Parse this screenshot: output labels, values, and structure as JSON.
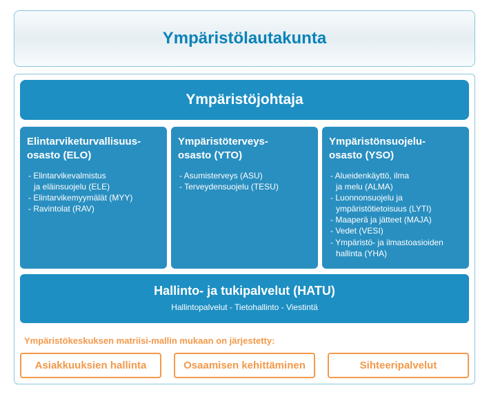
{
  "colors": {
    "blueText": "#0a82b8",
    "blueMid": "#1d8fc3",
    "blueFill": "#298fc0",
    "blueBorder": "#8bc6de",
    "orange": "#f2994a",
    "orangeBorder": "#f2994a"
  },
  "top": {
    "title": "Ympäristölautakunta"
  },
  "director": {
    "title": "Ympäristöjohtaja"
  },
  "depts": [
    {
      "title": "Elintarviketurvallisuus-\nosasto (ELO)",
      "items": [
        {
          "t": "Elintarvikevalmistus",
          "s": "ja eläinsuojelu  (ELE)"
        },
        {
          "t": "Elintarvikemyymälät  (MYY)"
        },
        {
          "t": "Ravintolat  (RAV)"
        }
      ]
    },
    {
      "title": "Ympäristöterveys-\nosasto (YTO)",
      "items": [
        {
          "t": "Asumisterveys  (ASU)"
        },
        {
          "t": "Terveydensuojelu  (TESU)"
        }
      ]
    },
    {
      "title": "Ympäristönsuojelu-\nosasto (YSO)",
      "items": [
        {
          "t": "Alueidenkäyttö, ilma",
          "s": "ja melu  (ALMA)"
        },
        {
          "t": "Luonnonsuojelu ja",
          "s": "ympäristötietoisuus  (LYTI)"
        },
        {
          "t": "Maaperä ja jätteet  (MAJA)"
        },
        {
          "t": "Vedet (VESI)"
        },
        {
          "t": "Ympäristö- ja ilmastoasioiden",
          "s": "hallinta  (YHA)"
        }
      ]
    }
  ],
  "hatu": {
    "title": "Hallinto- ja tukipalvelut (HATU)",
    "sub": "Hallintopalvelut - Tietohallinto - Viestintä"
  },
  "note": "Ympäristökeskuksen matriisi-mallin mukaan on järjestetty:",
  "buttons": [
    "Asiakkuuksien hallinta",
    "Osaamisen kehittäminen",
    "Sihteeripalvelut"
  ]
}
